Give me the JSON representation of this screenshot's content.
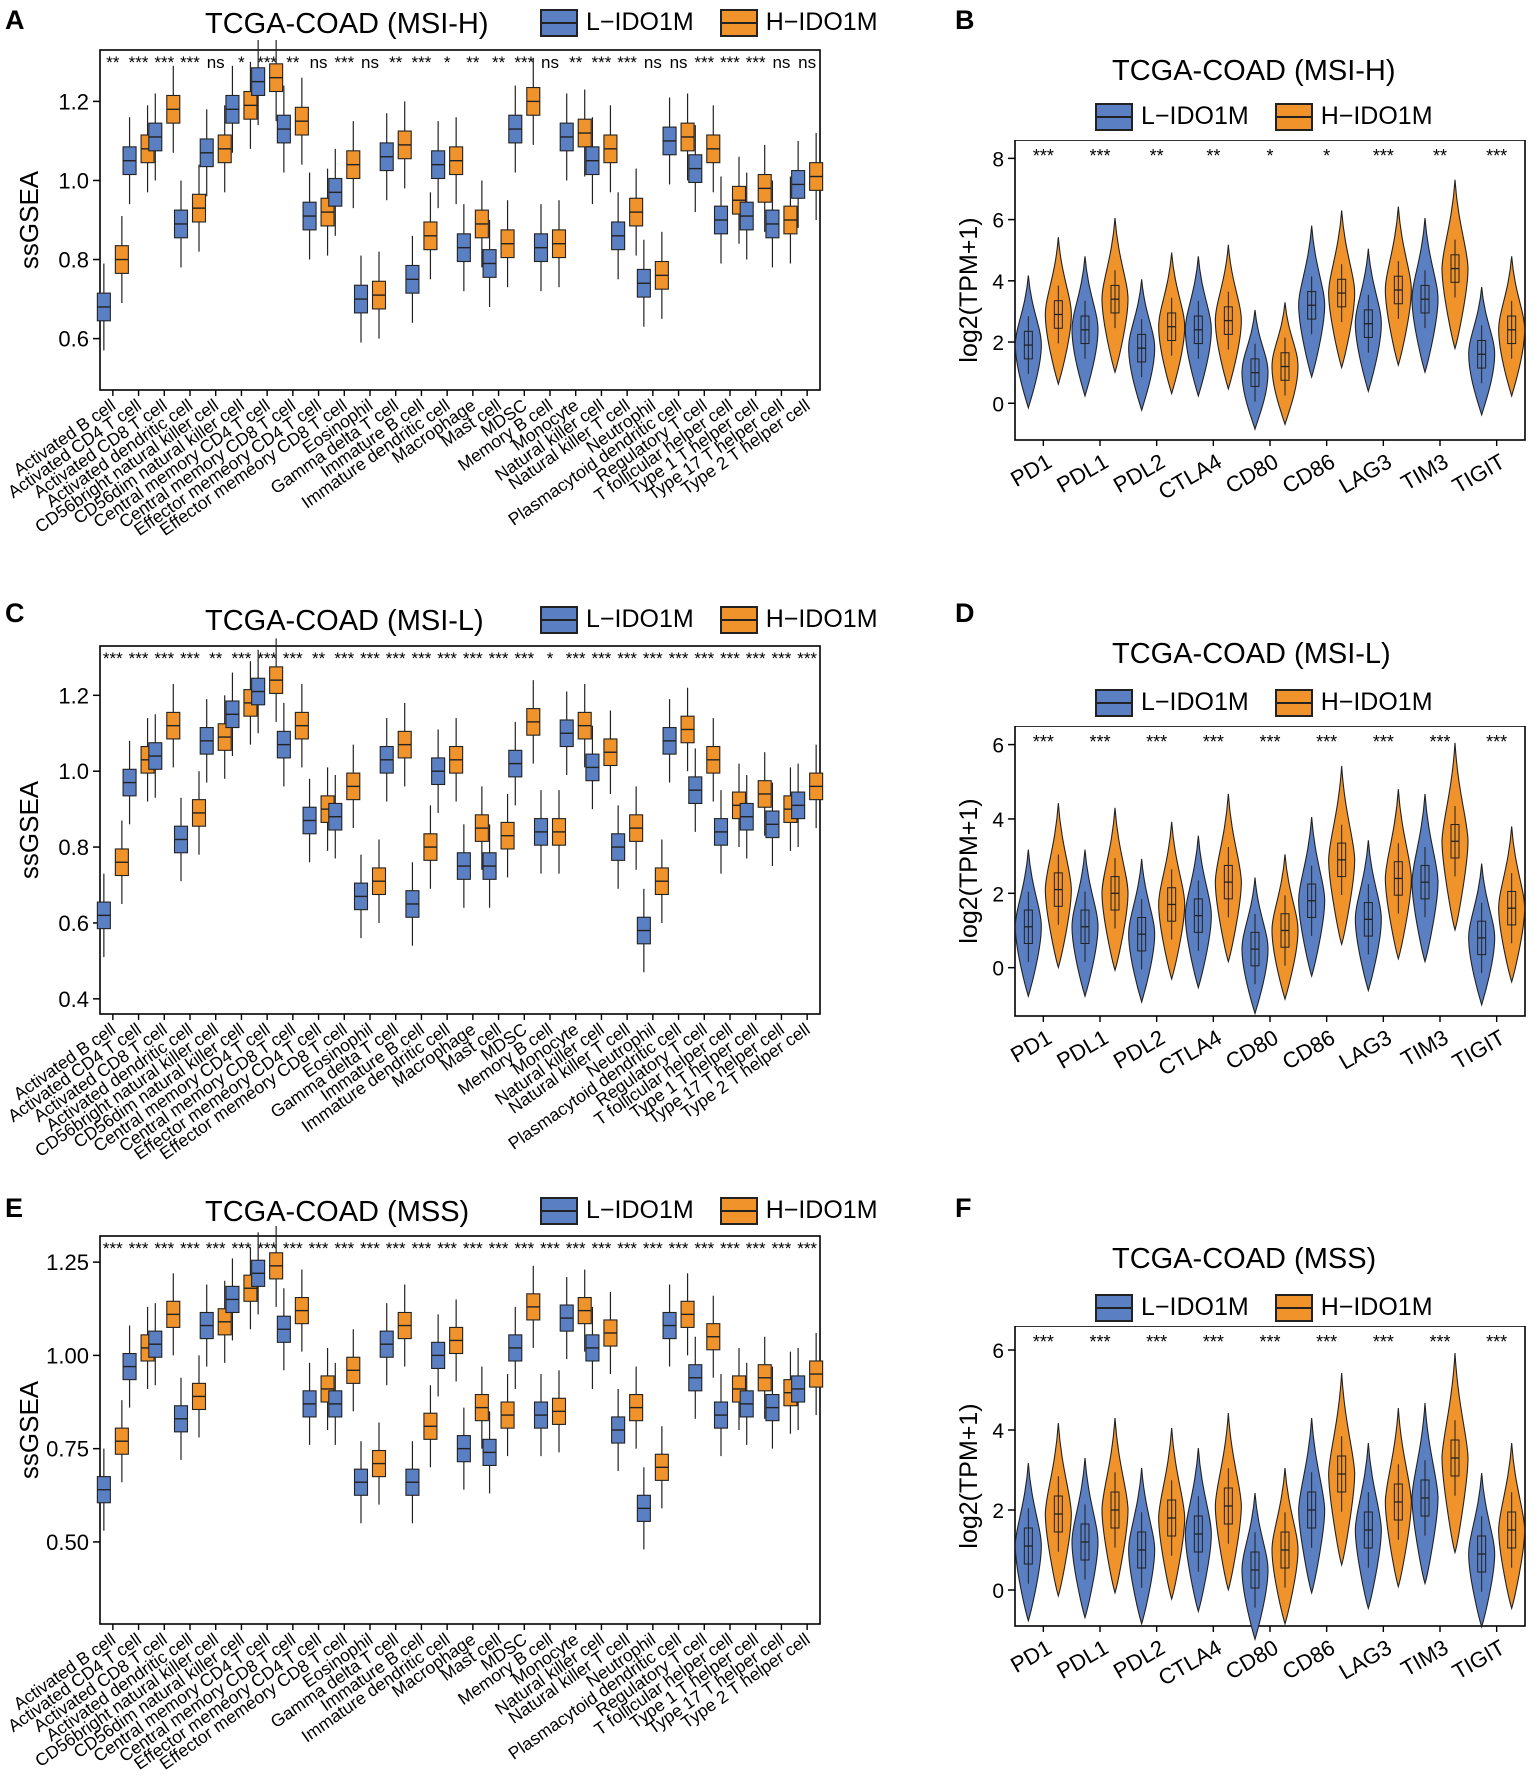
{
  "colors": {
    "low": "#5b7fc3",
    "high": "#f0932b",
    "line": "#222222"
  },
  "legend": {
    "low": "L−IDO1M",
    "high": "H−IDO1M"
  },
  "box_categories": [
    "Activated B cell",
    "Activated CD4 T cell",
    "Activated CD8 T cell",
    "Activated dendritic cell",
    "CD56bright natural killer cell",
    "CD56dim natural killer cell",
    "Central memory CD4 T cell",
    "Central memory CD8 T cell",
    "Effector memeory CD4 T cell",
    "Effector memeory CD8 T cell",
    "Eosinophil",
    "Gamma delta T cell",
    "Immature  B cell",
    "Immature dendritic cell",
    "Macrophage",
    "Mast cell",
    "MDSC",
    "Memory B cell",
    "Monocyte",
    "Natural killer cell",
    "Natural killer T cell",
    "Neutrophil",
    "Plasmacytoid dendritic cell",
    "Regulatory T cell",
    "T follicular helper cell",
    "Type 1 T helper cell",
    "Type 17 T helper cell",
    "Type 2 T helper cell"
  ],
  "violin_categories": [
    "PD1",
    "PDL1",
    "PDL2",
    "CTLA4",
    "CD80",
    "CD86",
    "LAG3",
    "TIM3",
    "TIGIT"
  ],
  "panels": [
    {
      "letter": "A",
      "title": "TCGA-COAD (MSI-H)",
      "ylabel": "ssGSEA",
      "chart_data": {
        "type": "boxplot",
        "ylim": [
          0.47,
          1.33
        ],
        "yticks": [
          "0.6",
          "0.8",
          "1.0",
          "1.2"
        ],
        "signif": [
          "**",
          "***",
          "***",
          "***",
          "ns",
          "*",
          "***",
          "**",
          "ns",
          "***",
          "ns",
          "**",
          "***",
          "*",
          "**",
          "**",
          "***",
          "ns",
          "**",
          "***",
          "***",
          "ns",
          "ns",
          "***",
          "***",
          "***",
          "ns",
          "ns"
        ],
        "series": [
          {
            "name": "L−IDO1M",
            "medians": [
              0.68,
              1.05,
              1.11,
              0.89,
              1.07,
              1.18,
              1.25,
              1.13,
              0.91,
              0.97,
              0.7,
              1.06,
              0.75,
              1.04,
              0.83,
              0.79,
              1.13,
              0.83,
              1.11,
              1.05,
              0.86,
              0.74,
              1.1,
              1.03,
              0.9,
              0.91,
              0.89,
              0.99
            ]
          },
          {
            "name": "H−IDO1M",
            "medians": [
              0.8,
              1.08,
              1.18,
              0.93,
              1.08,
              1.19,
              1.26,
              1.15,
              0.92,
              1.04,
              0.71,
              1.09,
              0.86,
              1.05,
              0.89,
              0.84,
              1.2,
              0.84,
              1.12,
              1.08,
              0.92,
              0.76,
              1.11,
              1.08,
              0.95,
              0.98,
              0.9,
              1.01
            ]
          }
        ]
      }
    },
    {
      "letter": "C",
      "title": "TCGA-COAD (MSI-L)",
      "ylabel": "ssGSEA",
      "chart_data": {
        "type": "boxplot",
        "ylim": [
          0.36,
          1.33
        ],
        "yticks": [
          "0.4",
          "0.6",
          "0.8",
          "1.0",
          "1.2"
        ],
        "signif": [
          "***",
          "***",
          "***",
          "***",
          "**",
          "***",
          "***",
          "***",
          "**",
          "***",
          "***",
          "***",
          "***",
          "***",
          "***",
          "***",
          "***",
          "*",
          "***",
          "***",
          "***",
          "***",
          "***",
          "***",
          "***",
          "***",
          "***",
          "***"
        ],
        "series": [
          {
            "name": "L−IDO1M",
            "medians": [
              0.62,
              0.97,
              1.04,
              0.82,
              1.08,
              1.15,
              1.21,
              1.07,
              0.87,
              0.88,
              0.67,
              1.03,
              0.65,
              1.0,
              0.75,
              0.75,
              1.02,
              0.84,
              1.1,
              1.01,
              0.8,
              0.58,
              1.08,
              0.95,
              0.84,
              0.88,
              0.86,
              0.91
            ]
          },
          {
            "name": "H−IDO1M",
            "medians": [
              0.76,
              1.03,
              1.12,
              0.89,
              1.09,
              1.18,
              1.24,
              1.12,
              0.9,
              0.96,
              0.71,
              1.07,
              0.8,
              1.03,
              0.85,
              0.83,
              1.13,
              0.84,
              1.12,
              1.05,
              0.85,
              0.71,
              1.11,
              1.03,
              0.91,
              0.94,
              0.9,
              0.96
            ]
          }
        ]
      }
    },
    {
      "letter": "E",
      "title": "TCGA-COAD (MSS)",
      "ylabel": "ssGSEA",
      "chart_data": {
        "type": "boxplot",
        "ylim": [
          0.28,
          1.32
        ],
        "yticks": [
          "0.50",
          "0.75",
          "1.00",
          "1.25"
        ],
        "signif": [
          "***",
          "***",
          "***",
          "***",
          "***",
          "***",
          "***",
          "***",
          "***",
          "***",
          "***",
          "***",
          "***",
          "***",
          "***",
          "***",
          "***",
          "***",
          "***",
          "***",
          "***",
          "***",
          "***",
          "***",
          "***",
          "***",
          "***",
          "***"
        ],
        "series": [
          {
            "name": "L−IDO1M",
            "medians": [
              0.64,
              0.97,
              1.03,
              0.83,
              1.08,
              1.15,
              1.22,
              1.07,
              0.87,
              0.87,
              0.66,
              1.03,
              0.66,
              1.0,
              0.75,
              0.74,
              1.02,
              0.84,
              1.1,
              1.02,
              0.8,
              0.59,
              1.08,
              0.94,
              0.84,
              0.87,
              0.86,
              0.91
            ]
          },
          {
            "name": "H−IDO1M",
            "medians": [
              0.77,
              1.02,
              1.11,
              0.89,
              1.09,
              1.18,
              1.24,
              1.12,
              0.91,
              0.96,
              0.71,
              1.08,
              0.81,
              1.04,
              0.86,
              0.84,
              1.13,
              0.85,
              1.12,
              1.06,
              0.86,
              0.7,
              1.11,
              1.05,
              0.91,
              0.94,
              0.9,
              0.95
            ]
          }
        ]
      }
    },
    {
      "letter": "B",
      "title": "TCGA-COAD (MSI-H)",
      "ylabel": "log2(TPM+1)",
      "chart_data": {
        "type": "violin",
        "ylim": [
          -1.2,
          8.6
        ],
        "yticks": [
          "0",
          "2",
          "4",
          "6",
          "8"
        ],
        "signif": [
          "***",
          "***",
          "**",
          "**",
          "*",
          "*",
          "***",
          "**",
          "***"
        ],
        "series": [
          {
            "name": "L−IDO1M",
            "medians": [
              1.9,
              2.4,
              1.8,
              2.4,
              1.0,
              3.2,
              2.6,
              3.4,
              1.6
            ]
          },
          {
            "name": "H−IDO1M",
            "medians": [
              2.9,
              3.4,
              2.5,
              2.7,
              1.2,
              3.6,
              3.7,
              4.4,
              2.4
            ]
          }
        ]
      }
    },
    {
      "letter": "D",
      "title": "TCGA-COAD (MSI-L)",
      "ylabel": "log2(TPM+1)",
      "chart_data": {
        "type": "violin",
        "ylim": [
          -1.3,
          6.5
        ],
        "yticks": [
          "0",
          "2",
          "4",
          "6"
        ],
        "signif": [
          "***",
          "***",
          "***",
          "***",
          "***",
          "***",
          "***",
          "***",
          "***"
        ],
        "series": [
          {
            "name": "L−IDO1M",
            "medians": [
              1.1,
              1.1,
              0.9,
              1.4,
              0.5,
              1.8,
              1.3,
              2.3,
              0.8
            ]
          },
          {
            "name": "H−IDO1M",
            "medians": [
              2.1,
              2.0,
              1.7,
              2.3,
              1.0,
              2.9,
              2.4,
              3.4,
              1.6
            ]
          }
        ]
      }
    },
    {
      "letter": "F",
      "title": "TCGA-COAD (MSS)",
      "ylabel": "log2(TPM+1)",
      "chart_data": {
        "type": "violin",
        "ylim": [
          -0.9,
          6.6
        ],
        "yticks": [
          "0",
          "2",
          "4",
          "6"
        ],
        "signif": [
          "***",
          "***",
          "***",
          "***",
          "***",
          "***",
          "***",
          "***",
          "***"
        ],
        "series": [
          {
            "name": "L−IDO1M",
            "medians": [
              1.1,
              1.2,
              1.0,
              1.4,
              0.5,
              2.0,
              1.5,
              2.3,
              0.9
            ]
          },
          {
            "name": "H−IDO1M",
            "medians": [
              1.9,
              2.0,
              1.8,
              2.1,
              1.0,
              2.9,
              2.2,
              3.3,
              1.5
            ]
          }
        ]
      }
    }
  ]
}
